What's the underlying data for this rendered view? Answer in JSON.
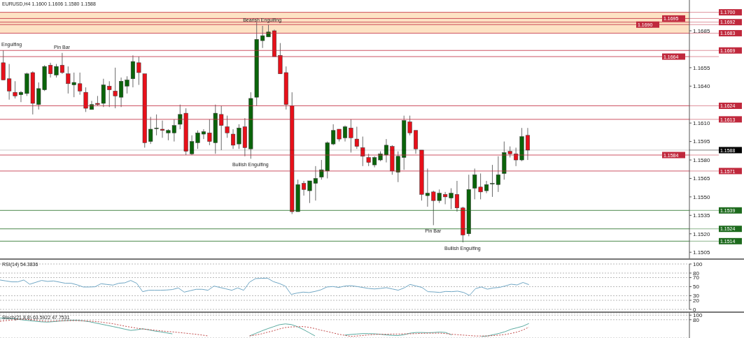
{
  "chart_data": [
    {
      "type": "candlestick",
      "title": "EURUSD,H4 1.1600 1.1606 1.1580 1.1588",
      "tick_labels": "y",
      "categories": [
        null,
        null,
        null,
        null,
        null,
        null,
        null,
        null,
        null,
        null,
        null,
        null,
        null,
        null,
        null,
        null,
        null,
        null,
        null,
        null,
        null,
        null,
        null,
        null,
        null,
        null,
        null,
        null,
        null,
        null,
        null,
        null,
        null,
        null,
        null,
        null,
        null,
        null,
        null,
        null,
        null,
        null,
        null,
        null,
        null,
        null,
        null,
        null,
        null,
        null,
        null,
        null,
        null,
        null,
        null,
        null,
        null,
        null,
        null,
        null,
        null,
        null,
        null,
        null,
        null,
        null,
        null,
        null,
        null,
        null,
        null,
        null,
        null,
        null,
        null,
        null,
        null,
        null,
        null,
        null,
        null,
        null,
        null,
        null,
        null,
        null,
        null,
        null,
        null,
        null,
        null,
        null,
        null,
        null,
        null,
        null,
        null,
        null,
        null,
        null,
        null,
        null,
        null,
        null,
        null,
        null,
        null,
        null,
        null,
        null,
        null,
        null,
        null,
        null,
        null,
        null,
        null
      ],
      "ohlc": [
        [
          1.1659,
          1.1669,
          1.1645,
          1.1645
        ],
        [
          1.1646,
          1.1658,
          1.1629,
          1.1636
        ],
        [
          1.1635,
          1.1644,
          1.163,
          1.1632
        ],
        [
          1.1633,
          1.1636,
          1.1627,
          1.1635
        ],
        [
          1.1634,
          1.1651,
          1.1632,
          1.165
        ],
        [
          1.1651,
          1.1652,
          1.1617,
          1.1626
        ],
        [
          1.1625,
          1.1643,
          1.1621,
          1.1638
        ],
        [
          1.1637,
          1.1657,
          1.1636,
          1.1656
        ],
        [
          1.1657,
          1.1659,
          1.1647,
          1.165
        ],
        [
          1.1649,
          1.1658,
          1.1647,
          1.1656
        ],
        [
          1.1657,
          1.1667,
          1.165,
          1.1651
        ],
        [
          1.165,
          1.1656,
          1.1634,
          1.1642
        ],
        [
          1.1641,
          1.1651,
          1.1631,
          1.1643
        ],
        [
          1.1642,
          1.1651,
          1.1633,
          1.1636
        ],
        [
          1.1635,
          1.1639,
          1.1619,
          1.1622
        ],
        [
          1.1621,
          1.1628,
          1.1621,
          1.1625
        ],
        [
          1.1626,
          1.1632,
          1.1624,
          1.1625
        ],
        [
          1.1626,
          1.1646,
          1.1623,
          1.1641
        ],
        [
          1.164,
          1.1644,
          1.1623,
          1.1637
        ],
        [
          1.1636,
          1.1655,
          1.1622,
          1.1632
        ],
        [
          1.1631,
          1.1647,
          1.1623,
          1.1644
        ],
        [
          1.164,
          1.1648,
          1.1634,
          1.1645
        ],
        [
          1.1646,
          1.1665,
          1.1639,
          1.166
        ],
        [
          1.1659,
          1.1664,
          1.1641,
          1.1651
        ],
        [
          1.165,
          1.165,
          1.159,
          1.1594
        ],
        [
          1.1595,
          1.1615,
          1.1593,
          1.1605
        ],
        [
          1.1606,
          1.1617,
          1.16,
          1.1606
        ],
        [
          1.1605,
          1.1612,
          1.1598,
          1.1604
        ],
        [
          1.1602,
          1.1605,
          1.1596,
          1.1604
        ],
        [
          1.1602,
          1.1613,
          1.1595,
          1.1608
        ],
        [
          1.1609,
          1.1625,
          1.1605,
          1.1617
        ],
        [
          1.1618,
          1.1622,
          1.1584,
          1.1587
        ],
        [
          1.1585,
          1.16,
          1.1584,
          1.1595
        ],
        [
          1.1594,
          1.1604,
          1.1589,
          1.1602
        ],
        [
          1.1601,
          1.1605,
          1.1597,
          1.1603
        ],
        [
          1.1602,
          1.1613,
          1.1592,
          1.1595
        ],
        [
          1.1594,
          1.1625,
          1.1585,
          1.1618
        ],
        [
          1.1617,
          1.1624,
          1.1588,
          1.1608
        ],
        [
          1.1607,
          1.1616,
          1.1598,
          1.1602
        ],
        [
          1.1601,
          1.1605,
          1.1589,
          1.1592
        ],
        [
          1.1593,
          1.1609,
          1.1589,
          1.1606
        ],
        [
          1.1607,
          1.1614,
          1.1583,
          1.159
        ],
        [
          1.1589,
          1.1635,
          1.1581,
          1.163
        ],
        [
          1.1631,
          1.1692,
          1.1624,
          1.1678
        ],
        [
          1.1677,
          1.1689,
          1.1671,
          1.1681
        ],
        [
          1.168,
          1.169,
          1.168,
          1.1684
        ],
        [
          1.1685,
          1.1686,
          1.1664,
          1.1664
        ],
        [
          1.1665,
          1.1675,
          1.165,
          1.165
        ],
        [
          1.1651,
          1.1656,
          1.1621,
          1.1625
        ],
        [
          1.1624,
          1.1635,
          1.1536,
          1.1538
        ],
        [
          1.1538,
          1.1564,
          1.1538,
          1.156
        ],
        [
          1.1561,
          1.1563,
          1.1551,
          1.1556
        ],
        [
          1.1555,
          1.1563,
          1.1545,
          1.1563
        ],
        [
          1.1561,
          1.1575,
          1.1547,
          1.1565
        ],
        [
          1.1566,
          1.158,
          1.1564,
          1.1572
        ],
        [
          1.1571,
          1.1595,
          1.1565,
          1.1594
        ],
        [
          1.1593,
          1.1609,
          1.1592,
          1.1604
        ],
        [
          1.1605,
          1.1605,
          1.1595,
          1.1597
        ],
        [
          1.1598,
          1.1608,
          1.1595,
          1.1607
        ],
        [
          1.1606,
          1.1613,
          1.1586,
          1.1598
        ],
        [
          1.1597,
          1.1607,
          1.1589,
          1.1591
        ],
        [
          1.159,
          1.1599,
          1.1575,
          1.1583
        ],
        [
          1.1582,
          1.1585,
          1.1575,
          1.1578
        ],
        [
          1.1576,
          1.1583,
          1.1574,
          1.1582
        ],
        [
          1.158,
          1.1587,
          1.1579,
          1.1585
        ],
        [
          1.1584,
          1.1597,
          1.1578,
          1.1592
        ],
        [
          1.1591,
          1.1592,
          1.1568,
          1.1571
        ],
        [
          1.157,
          1.1587,
          1.1562,
          1.1583
        ],
        [
          1.1582,
          1.1616,
          1.1572,
          1.1612
        ],
        [
          1.1611,
          1.1616,
          1.16,
          1.1602
        ],
        [
          1.1604,
          1.1604,
          1.1585,
          1.1589
        ],
        [
          1.1588,
          1.1588,
          1.1547,
          1.1552
        ],
        [
          1.1551,
          1.1573,
          1.1542,
          1.1553
        ],
        [
          1.1554,
          1.1555,
          1.1527,
          1.1547
        ],
        [
          1.1547,
          1.1556,
          1.1545,
          1.1553
        ],
        [
          1.1552,
          1.1554,
          1.1544,
          1.155
        ],
        [
          1.1549,
          1.1557,
          1.154,
          1.1553
        ],
        [
          1.1552,
          1.1563,
          1.1538,
          1.1541
        ],
        [
          1.1541,
          1.1542,
          1.1513,
          1.1519
        ],
        [
          1.152,
          1.1568,
          1.1518,
          1.1556
        ],
        [
          1.1557,
          1.1573,
          1.1548,
          1.1568
        ],
        [
          1.1558,
          1.1569,
          1.1548,
          1.1554
        ],
        [
          1.1555,
          1.1563,
          1.1553,
          1.156
        ],
        [
          1.1561,
          1.1576,
          1.155,
          1.1561
        ],
        [
          1.156,
          1.1583,
          1.1554,
          1.1568
        ],
        [
          1.1569,
          1.1595,
          1.1564,
          1.1586
        ],
        [
          1.1587,
          1.1591,
          1.1582,
          1.1585
        ],
        [
          1.1585,
          1.159,
          1.1575,
          1.158
        ],
        [
          1.158,
          1.1606,
          1.1579,
          1.1599
        ],
        [
          1.16,
          1.1606,
          1.158,
          1.1588
        ],
        null,
        null,
        null,
        null,
        null,
        null,
        null,
        null,
        null,
        null,
        null,
        null,
        null,
        null,
        null,
        null,
        null,
        null,
        null,
        null,
        null,
        null,
        null,
        null,
        null,
        null,
        null
      ],
      "colors": [
        "#e8101a",
        "#e8101a",
        "#e8101a",
        "#0a640a",
        "#0a640a",
        "#e8101a",
        "#0a640a",
        "#0a640a",
        "#e8101a",
        "#0a640a",
        "#e8101a",
        "#e8101a",
        "#0a640a",
        "#e8101a",
        "#e8101a",
        "#0a640a",
        "#e8101a",
        "#0a640a",
        "#e8101a",
        "#e8101a",
        "#0a640a",
        "#0a640a",
        "#0a640a",
        "#e8101a",
        "#e8101a",
        "#0a640a",
        "#0a640a",
        "#e8101a",
        "#0a640a",
        "#0a640a",
        "#0a640a",
        "#e8101a",
        "#0a640a",
        "#0a640a",
        "#0a640a",
        "#e8101a",
        "#0a640a",
        "#e8101a",
        "#e8101a",
        "#e8101a",
        "#0a640a",
        "#e8101a",
        "#0a640a",
        "#0a640a",
        "#0a640a",
        "#0a640a",
        "#e8101a",
        "#e8101a",
        "#e8101a",
        "#e8101a",
        "#0a640a",
        "#e8101a",
        "#0a640a",
        "#0a640a",
        "#0a640a",
        "#0a640a",
        "#0a640a",
        "#e8101a",
        "#0a640a",
        "#e8101a",
        "#e8101a",
        "#e8101a",
        "#e8101a",
        "#0a640a",
        "#0a640a",
        "#0a640a",
        "#e8101a",
        "#0a640a",
        "#0a640a",
        "#e8101a",
        "#e8101a",
        "#e8101a",
        "#0a640a",
        "#e8101a",
        "#0a640a",
        "#e8101a",
        "#0a640a",
        "#e8101a",
        "#e8101a",
        "#0a640a",
        "#0a640a",
        "#e8101a",
        "#0a640a",
        "#0a640a",
        "#0a640a",
        "#0a640a",
        "#e8101a",
        "#e8101a",
        "#0a640a",
        "#e8101a",
        null,
        null,
        null,
        null,
        null,
        null,
        null,
        null,
        null,
        null,
        null,
        null,
        null,
        null,
        null,
        null,
        null,
        null,
        null,
        null,
        null,
        null,
        null,
        null,
        null,
        null,
        null
      ],
      "ylim": [
        1.15,
        1.171
      ],
      "yticks": [
        {
          "value": 1.1505,
          "label": "1.1505"
        },
        {
          "value": 1.152,
          "label": "1.1520"
        },
        {
          "value": 1.1535,
          "label": "1.1535"
        },
        {
          "value": 1.155,
          "label": "1.1550"
        },
        {
          "value": 1.1565,
          "label": "1.1565"
        },
        {
          "value": 1.158,
          "label": "1.1580"
        },
        {
          "value": 1.1595,
          "label": "1.1595"
        },
        {
          "value": 1.161,
          "label": "1.1610"
        },
        {
          "value": 1.164,
          "label": "1.1640"
        },
        {
          "value": 1.1655,
          "label": "1.1655"
        },
        {
          "value": 1.1685,
          "label": "1.1685"
        }
      ],
      "bands": [
        {
          "axis": "y",
          "from": 1.1683,
          "to": 1.17,
          "color": "#fde2c4"
        }
      ],
      "ref_lines": [
        {
          "axis": "y",
          "value": 1.17,
          "label": "1.1700",
          "color": "#c0283c"
        },
        {
          "axis": "y",
          "value": 1.1695,
          "label": "1.1695",
          "color": "#c0283c"
        },
        {
          "axis": "y",
          "value": 1.1692,
          "label": "1.1692",
          "color": "#c0283c"
        },
        {
          "axis": "y",
          "value": 1.169,
          "label": "1.1690",
          "color": "#c0283c"
        },
        {
          "axis": "y",
          "value": 1.1683,
          "label": "1.1683",
          "color": "#c0283c"
        },
        {
          "axis": "y",
          "value": 1.1669,
          "label": "1.1669",
          "color": "#c0283c"
        },
        {
          "axis": "y",
          "value": 1.1664,
          "label": "1.1664",
          "color": "#c0283c"
        },
        {
          "axis": "y",
          "value": 1.1624,
          "label": "1.1624",
          "color": "#c0283c"
        },
        {
          "axis": "y",
          "value": 1.1613,
          "label": "1.1613",
          "color": "#c0283c"
        },
        {
          "axis": "y",
          "value": 1.1588,
          "label": "1.1588",
          "color": "#000000"
        },
        {
          "axis": "y",
          "value": 1.1584,
          "label": "1.1584",
          "color": "#c0283c"
        },
        {
          "axis": "y",
          "value": 1.1571,
          "label": "1.1571",
          "color": "#c0283c"
        },
        {
          "axis": "y",
          "value": 1.1539,
          "label": "1.1539",
          "color": "#1e6b1e"
        },
        {
          "axis": "y",
          "value": 1.1524,
          "label": "1.1524",
          "color": "#1e6b1e"
        },
        {
          "axis": "y",
          "value": 1.1514,
          "label": "1.1514",
          "color": "#1e6b1e"
        }
      ],
      "annotations": [
        {
          "text": "Engulfing",
          "y": 1.1669
        },
        {
          "text": "Pin Bar",
          "y": 1.1667
        },
        {
          "text": "Bearish Engulfing",
          "y": 1.1689
        },
        {
          "text": "Bullish Engulfing",
          "y": 1.1581
        },
        {
          "text": "Pin Bar",
          "y": 1.1527
        },
        {
          "text": "Bullish Engulfing",
          "y": 1.1513
        }
      ]
    },
    {
      "type": "line",
      "title": "RSI(14) 54.3836",
      "tick_labels": "y",
      "grid": "y",
      "marker": "none",
      "categories": [
        null,
        null,
        null,
        null,
        null,
        null,
        null,
        null,
        null,
        null,
        null,
        null,
        null,
        null,
        null,
        null,
        null,
        null,
        null,
        null,
        null,
        null,
        null,
        null,
        null,
        null,
        null,
        null,
        null,
        null,
        null,
        null,
        null,
        null,
        null,
        null,
        null,
        null,
        null,
        null,
        null,
        null,
        null,
        null,
        null,
        null,
        null,
        null,
        null,
        null,
        null,
        null,
        null,
        null,
        null,
        null,
        null,
        null,
        null,
        null,
        null,
        null,
        null,
        null,
        null,
        null,
        null,
        null,
        null,
        null,
        null,
        null,
        null,
        null,
        null,
        null,
        null,
        null,
        null,
        null,
        null,
        null,
        null,
        null,
        null,
        null,
        null,
        null,
        null,
        null,
        null,
        null,
        null,
        null,
        null,
        null,
        null,
        null,
        null,
        null,
        null,
        null,
        null,
        null,
        null,
        null,
        null,
        null,
        null,
        null,
        null,
        null,
        null,
        null,
        null,
        null,
        null
      ],
      "ylim": [
        0,
        100
      ],
      "yticks": [
        0,
        20,
        30,
        50,
        70,
        80,
        100
      ],
      "series": [
        {
          "color": "#6fa6c4",
          "line_style": "solid",
          "values": [
            64.7,
            62.6,
            60.6,
            60.6,
            64.7,
            55.4,
            59.5,
            63.7,
            61.6,
            62.6,
            60.1,
            57.5,
            57.5,
            53.9,
            49.3,
            49.3,
            49.8,
            56.5,
            54.9,
            53.4,
            57.5,
            58.5,
            63.7,
            57.5,
            39.0,
            42.1,
            42.1,
            42.1,
            42.6,
            43.7,
            47.2,
            38.0,
            41.1,
            44.2,
            44.2,
            42.1,
            51.3,
            48.3,
            45.2,
            42.1,
            47.2,
            42.1,
            60.1,
            67.8,
            68.3,
            68.8,
            61.1,
            57.0,
            51.3,
            32.9,
            36.0,
            38.0,
            37.0,
            39.5,
            43.1,
            49.3,
            50.3,
            48.3,
            51.3,
            52.2,
            50.5,
            48.3,
            46.1,
            45.0,
            46.1,
            47.8,
            45.0,
            42.2,
            47.2,
            54.9,
            51.6,
            48.3,
            39.0,
            38.4,
            37.3,
            39.5,
            39.0,
            40.1,
            37.3,
            30.8,
            45.6,
            49.4,
            44.5,
            47.2,
            48.3,
            51.6,
            55.4,
            53.8,
            59.3,
            54.3836,
            null,
            null,
            null,
            null,
            null,
            null,
            null,
            null,
            null,
            null,
            null,
            null,
            null,
            null,
            null,
            null,
            null,
            null,
            null,
            null,
            null,
            null,
            null,
            null,
            null,
            null,
            null
          ]
        }
      ]
    },
    {
      "type": "line",
      "title": "Stoch(21,8,8) 63.5922 47.7531",
      "tick_labels": "y",
      "grid": "y",
      "marker": "none",
      "categories": [
        null,
        null,
        null,
        null,
        null,
        null,
        null,
        null,
        null,
        null,
        null,
        null,
        null,
        null,
        null,
        null,
        null,
        null,
        null,
        null,
        null,
        null,
        null,
        null,
        null,
        null,
        null,
        null,
        null,
        null,
        null,
        null,
        null,
        null,
        null,
        null,
        null,
        null,
        null,
        null,
        null,
        null,
        null,
        null,
        null,
        null,
        null,
        null,
        null,
        null,
        null,
        null,
        null,
        null,
        null,
        null,
        null,
        null,
        null,
        null,
        null,
        null,
        null,
        null,
        null,
        null,
        null,
        null,
        null,
        null,
        null,
        null,
        null,
        null,
        null,
        null,
        null,
        null,
        null,
        null,
        null,
        null,
        null,
        null,
        null,
        null,
        null,
        null,
        null,
        null,
        null,
        null,
        null,
        null,
        null,
        null,
        null,
        null,
        null,
        null,
        null,
        null,
        null,
        null,
        null,
        null,
        null,
        null,
        null,
        null,
        null,
        null,
        null,
        null,
        null,
        null,
        null
      ],
      "ylim": [
        0,
        110
      ],
      "yticks": [
        80,
        100
      ],
      "series": [
        {
          "color": "#5aaaa0",
          "line_style": "solid",
          "values": [
            87.5,
            86.6,
            84.8,
            82.1,
            78.6,
            75.9,
            73.2,
            70.6,
            69.7,
            71.5,
            74.1,
            75.9,
            77.7,
            77.7,
            75.0,
            71.5,
            66.1,
            60.8,
            55.5,
            50.1,
            44.8,
            38.6,
            33.2,
            35.9,
            40.4,
            35.9,
            30.6,
            27.0,
            22.6,
            18.1,
            null,
            null,
            null,
            null,
            null,
            null,
            null,
            null,
            null,
            null,
            null,
            null,
            9.2,
            19.9,
            30.6,
            40.4,
            49.2,
            58.1,
            61.7,
            59.0,
            50.1,
            37.7,
            23.5,
            9.2,
            null,
            null,
            null,
            null,
            12.6,
            15.4,
            17.3,
            19.2,
            19.2,
            18.3,
            16.4,
            13.5,
            11.6,
            10.7,
            14.5,
            21.1,
            24.0,
            24.0,
            23.0,
            24.0,
            25.9,
            24.0,
            13.5,
            null,
            null,
            null,
            null,
            6.9,
            8.8,
            14.5,
            20.2,
            27.8,
            38.3,
            44.9,
            52.0,
            63.5922,
            null,
            null,
            null,
            null,
            null,
            null,
            null,
            null,
            null,
            null,
            null,
            null,
            null,
            null,
            null,
            null,
            null,
            null,
            null,
            null,
            null,
            null,
            null,
            null,
            null,
            null,
            null
          ]
        },
        {
          "color": "#c04848",
          "line_style": "dotted",
          "values": [
            73.2,
            75.9,
            78.6,
            81.3,
            82.1,
            80.4,
            77.7,
            75.0,
            73.2,
            74.1,
            75.0,
            75.9,
            75.9,
            75.9,
            75.0,
            74.1,
            72.4,
            69.7,
            66.1,
            62.6,
            57.2,
            51.9,
            47.5,
            43.0,
            39.5,
            36.8,
            34.1,
            31.5,
            28.8,
            27.0,
            24.3,
            21.7,
            19.0,
            16.3,
            12.8,
            9.2,
            null,
            null,
            null,
            null,
            null,
            null,
            9.2,
            12.8,
            18.1,
            25.2,
            31.5,
            39.5,
            45.7,
            48.4,
            49.3,
            50.1,
            46.6,
            41.2,
            34.1,
            28.8,
            22.6,
            16.3,
            11.9,
            6.9,
            8.8,
            10.7,
            13.5,
            15.4,
            16.4,
            16.4,
            17.3,
            17.3,
            18.3,
            18.3,
            19.2,
            20.2,
            21.1,
            21.1,
            21.1,
            19.2,
            16.4,
            14.5,
            12.6,
            10.7,
            8.8,
            8.8,
            8.8,
            10.7,
            12.6,
            15.4,
            20.0,
            26.0,
            35.0,
            47.7531,
            null,
            null,
            null,
            null,
            null,
            null,
            null,
            null,
            null,
            null,
            null,
            null,
            null,
            null,
            null,
            null,
            null,
            null,
            null,
            null,
            null,
            null,
            null,
            null,
            null,
            null,
            null
          ]
        }
      ]
    }
  ]
}
